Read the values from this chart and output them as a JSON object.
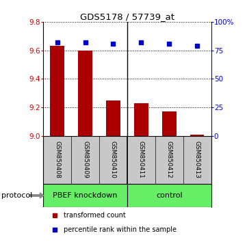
{
  "title": "GDS5178 / 57739_at",
  "samples": [
    "GSM850408",
    "GSM850409",
    "GSM850410",
    "GSM850411",
    "GSM850412",
    "GSM850413"
  ],
  "red_values": [
    9.63,
    9.6,
    9.25,
    9.23,
    9.17,
    9.01
  ],
  "blue_values": [
    82,
    82,
    81,
    82,
    81,
    79
  ],
  "ylim_left": [
    9.0,
    9.8
  ],
  "ylim_right": [
    0,
    100
  ],
  "yticks_left": [
    9.0,
    9.2,
    9.4,
    9.6,
    9.8
  ],
  "yticks_right": [
    0,
    25,
    50,
    75,
    100
  ],
  "group_boundary": 2.5,
  "bar_color": "#AA0000",
  "dot_color": "#0000CC",
  "bar_width": 0.5,
  "protocol_label": "protocol",
  "legend_red": "transformed count",
  "legend_blue": "percentile rank within the sample",
  "tick_label_color_left": "#CC0000",
  "tick_label_color_right": "#0000CC",
  "bg_color_plot": "#FFFFFF",
  "sample_box_color": "#C8C8C8",
  "green_color": "#66EE66"
}
